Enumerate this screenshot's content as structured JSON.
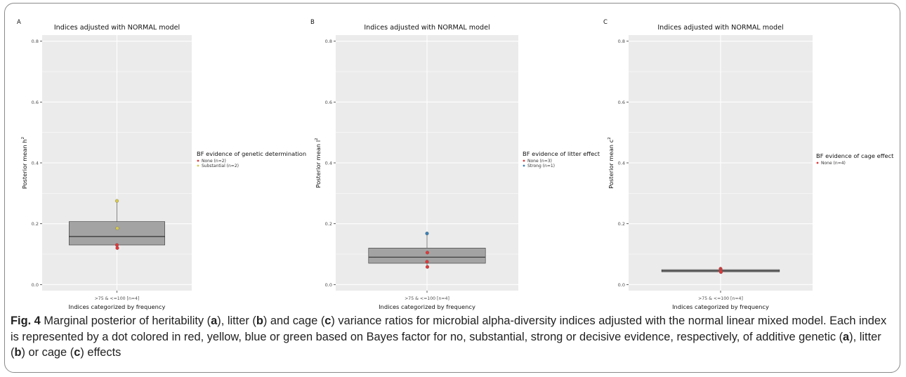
{
  "chart_data": [
    {
      "type": "box",
      "panel_label": "A",
      "title": "Indices adjusted with NORMAL model",
      "xlabel": "Indices categorized by frequency",
      "ylabel_base": "Posterior mean h",
      "ylabel_sup": "2",
      "ylim": [
        -0.02,
        0.82
      ],
      "yticks": [
        "0.0",
        "0.2",
        "0.4",
        "0.6",
        "0.8"
      ],
      "ytick_values": [
        0.0,
        0.2,
        0.4,
        0.6,
        0.8
      ],
      "categories": [
        ">75 & <=100 [n=4]"
      ],
      "box": {
        "q1": 0.13,
        "median": 0.158,
        "q3": 0.207,
        "whisker_low": 0.12,
        "whisker_high": 0.275
      },
      "points": [
        {
          "y": 0.275,
          "group": "Substantial",
          "color": "#d6c94f"
        },
        {
          "y": 0.185,
          "group": "Substantial",
          "color": "#d6c94f"
        },
        {
          "y": 0.13,
          "group": "None",
          "color": "#e0383a"
        },
        {
          "y": 0.12,
          "group": "None",
          "color": "#e0383a"
        }
      ],
      "legend": {
        "title": "BF evidence of genetic determination",
        "entries": [
          {
            "label": "None (n=2)",
            "color": "#e0383a"
          },
          {
            "label": "Substantial (n=2)",
            "color": "#d6c94f"
          }
        ]
      },
      "grid": true,
      "background": "#ebebeb"
    },
    {
      "type": "box",
      "panel_label": "B",
      "title": "Indices adjusted with NORMAL model",
      "xlabel": "Indices categorized by frequency",
      "ylabel_base": "Posterior mean l",
      "ylabel_sup": "2",
      "ylim": [
        -0.02,
        0.82
      ],
      "yticks": [
        "0.0",
        "0.2",
        "0.4",
        "0.6",
        "0.8"
      ],
      "ytick_values": [
        0.0,
        0.2,
        0.4,
        0.6,
        0.8
      ],
      "categories": [
        ">75 & <=100 [n=4]"
      ],
      "box": {
        "q1": 0.07,
        "median": 0.09,
        "q3": 0.12,
        "whisker_low": 0.058,
        "whisker_high": 0.168
      },
      "points": [
        {
          "y": 0.168,
          "group": "Strong",
          "color": "#3b7fb5"
        },
        {
          "y": 0.105,
          "group": "None",
          "color": "#e0383a"
        },
        {
          "y": 0.075,
          "group": "None",
          "color": "#e0383a"
        },
        {
          "y": 0.058,
          "group": "None",
          "color": "#e0383a"
        }
      ],
      "legend": {
        "title": "BF evidence of litter effect",
        "entries": [
          {
            "label": "None (n=3)",
            "color": "#e0383a"
          },
          {
            "label": "Strong (n=1)",
            "color": "#3b7fb5"
          }
        ]
      },
      "grid": true,
      "background": "#ebebeb"
    },
    {
      "type": "box",
      "panel_label": "C",
      "title": "Indices adjusted with NORMAL model",
      "xlabel": "Indices categorized by frequency",
      "ylabel_base": "Posterior mean c",
      "ylabel_sup": "2",
      "ylim": [
        -0.02,
        0.82
      ],
      "yticks": [
        "0.0",
        "0.2",
        "0.4",
        "0.6",
        "0.8"
      ],
      "ytick_values": [
        0.0,
        0.2,
        0.4,
        0.6,
        0.8
      ],
      "categories": [
        ">75 & <=100 [n=4]"
      ],
      "box": {
        "q1": 0.042,
        "median": 0.045,
        "q3": 0.049,
        "whisker_low": 0.04,
        "whisker_high": 0.052
      },
      "points": [
        {
          "y": 0.052,
          "group": "None",
          "color": "#e0383a"
        },
        {
          "y": 0.047,
          "group": "None",
          "color": "#e0383a"
        },
        {
          "y": 0.044,
          "group": "None",
          "color": "#e0383a"
        },
        {
          "y": 0.041,
          "group": "None",
          "color": "#e0383a"
        }
      ],
      "legend": {
        "title": "BF evidence of cage effect",
        "entries": [
          {
            "label": "None (n=4)",
            "color": "#e0383a"
          }
        ]
      },
      "grid": true,
      "background": "#ebebeb"
    }
  ],
  "caption": {
    "fig_label": "Fig. 4",
    "parts": [
      "  Marginal posterior of heritability (",
      "a",
      "), litter (",
      "b",
      ") and cage (",
      "c",
      ") variance ratios for microbial alpha-diversity indices adjusted with the normal linear mixed model. Each index is represented by a dot colored in red, yellow, blue or green based on Bayes factor for no, substantial, strong or decisive evidence, respectively, of additive genetic (",
      "a",
      "), litter (",
      "b",
      ") or cage (",
      "c",
      ") effects"
    ]
  }
}
